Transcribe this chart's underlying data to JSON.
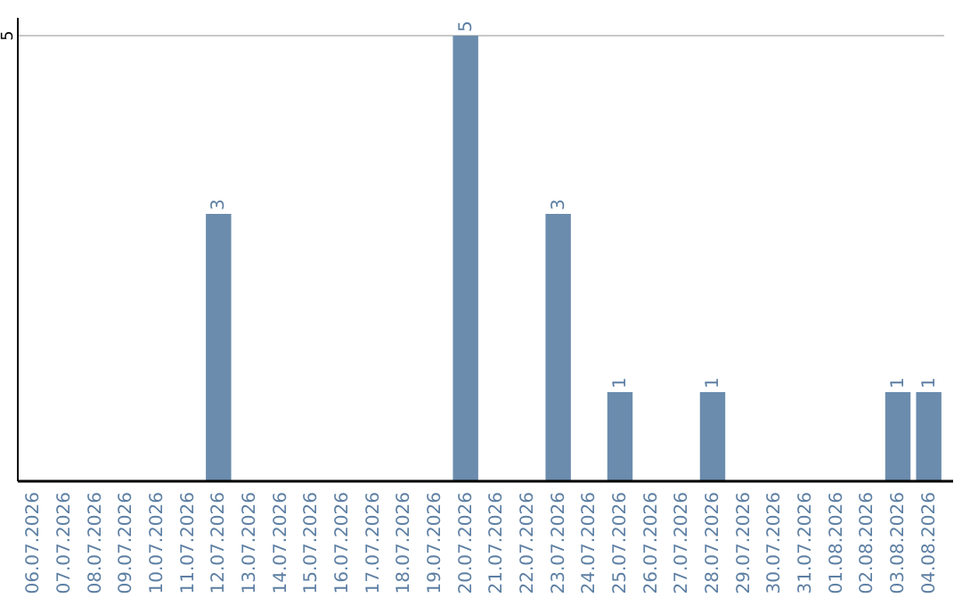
{
  "chart_data": {
    "type": "bar",
    "categories": [
      "06.07.2026",
      "07.07.2026",
      "08.07.2026",
      "09.07.2026",
      "10.07.2026",
      "11.07.2026",
      "12.07.2026",
      "13.07.2026",
      "14.07.2026",
      "15.07.2026",
      "16.07.2026",
      "17.07.2026",
      "18.07.2026",
      "19.07.2026",
      "20.07.2026",
      "21.07.2026",
      "22.07.2026",
      "23.07.2026",
      "24.07.2026",
      "25.07.2026",
      "26.07.2026",
      "27.07.2026",
      "28.07.2026",
      "29.07.2026",
      "30.07.2026",
      "31.07.2026",
      "01.08.2026",
      "02.08.2026",
      "03.08.2026",
      "04.08.2026"
    ],
    "values": [
      null,
      null,
      null,
      null,
      null,
      null,
      3,
      null,
      null,
      null,
      null,
      null,
      null,
      null,
      5,
      null,
      null,
      3,
      null,
      1,
      null,
      null,
      1,
      null,
      null,
      null,
      null,
      null,
      1,
      1
    ],
    "color": "#6b8cad",
    "ylim": [
      0,
      5.2
    ],
    "yticks": [
      5
    ],
    "grid": "y",
    "data_labels": true
  }
}
